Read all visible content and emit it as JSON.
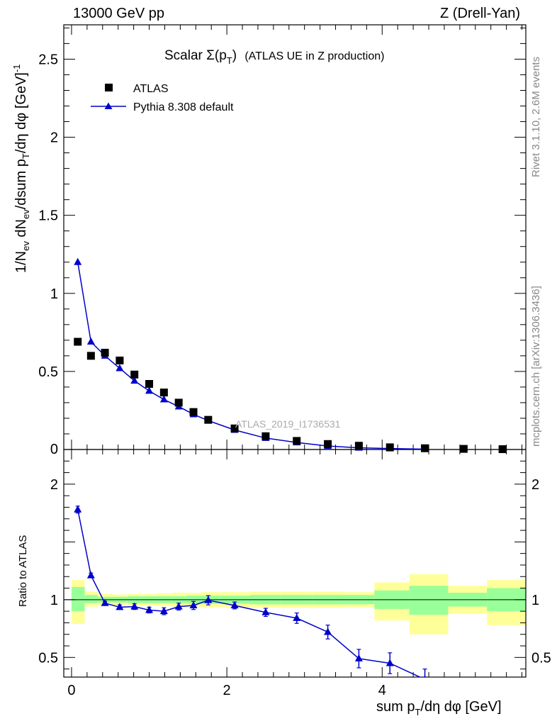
{
  "header": {
    "left": "13000 GeV pp",
    "right": "Z (Drell-Yan)"
  },
  "plot_title": {
    "main": "Scalar Σ(p",
    "sub": "T",
    "close": ")",
    "suffix": "(ATLAS UE in Z production)"
  },
  "legend": {
    "data_label": "ATLAS",
    "mc_label": "Pythia 8.308 default"
  },
  "watermark": "ATLAS_2019_I1736531",
  "side_text": {
    "rivet": "Rivet 3.1.10,  2.6M events",
    "mcplots": "mcplots.cern.ch [arXiv:1306.3436]"
  },
  "axes": {
    "ylabel_main": "1/N_ev dN_ev/dsum p_T/dη dφ [GeV]^-1",
    "ylabel_ratio": "Ratio to ATLAS",
    "xlabel": "sum p_T/dη dφ [GeV]"
  },
  "colors": {
    "data": "#000000",
    "mc": "#0000cc",
    "band_inner": "#99ff99",
    "band_outer": "#ffff99"
  },
  "chart_data": {
    "type": "scatter",
    "xlim": [
      -0.1,
      5.85
    ],
    "ylim_main": [
      0,
      2.72
    ],
    "ylim_ratio": [
      0.33,
      2.3
    ],
    "x_ticks": [
      0,
      2,
      4
    ],
    "y_ticks_main": [
      0.5,
      1,
      1.5,
      2,
      2.5
    ],
    "y_ticks_ratio": [
      0.5,
      1,
      2
    ],
    "data": [
      {
        "x": 0.08,
        "y": 0.69
      },
      {
        "x": 0.25,
        "y": 0.6
      },
      {
        "x": 0.43,
        "y": 0.62
      },
      {
        "x": 0.62,
        "y": 0.57
      },
      {
        "x": 0.81,
        "y": 0.48
      },
      {
        "x": 1.0,
        "y": 0.42
      },
      {
        "x": 1.19,
        "y": 0.365
      },
      {
        "x": 1.38,
        "y": 0.3
      },
      {
        "x": 1.57,
        "y": 0.24
      },
      {
        "x": 1.76,
        "y": 0.19
      },
      {
        "x": 2.1,
        "y": 0.135
      },
      {
        "x": 2.5,
        "y": 0.085
      },
      {
        "x": 2.9,
        "y": 0.055
      },
      {
        "x": 3.3,
        "y": 0.035
      },
      {
        "x": 3.7,
        "y": 0.024
      },
      {
        "x": 4.1,
        "y": 0.014
      },
      {
        "x": 4.55,
        "y": 0.008
      },
      {
        "x": 5.05,
        "y": 0.004
      },
      {
        "x": 5.55,
        "y": 0.002
      }
    ],
    "mc": [
      {
        "x": 0.08,
        "y": 1.2,
        "err": 0.02
      },
      {
        "x": 0.25,
        "y": 0.69,
        "err": 0.01
      },
      {
        "x": 0.43,
        "y": 0.6,
        "err": 0.01
      },
      {
        "x": 0.62,
        "y": 0.52,
        "err": 0.01
      },
      {
        "x": 0.81,
        "y": 0.44,
        "err": 0.01
      },
      {
        "x": 1.0,
        "y": 0.375,
        "err": 0.01
      },
      {
        "x": 1.19,
        "y": 0.32,
        "err": 0.01
      },
      {
        "x": 1.38,
        "y": 0.275,
        "err": 0.01
      },
      {
        "x": 1.57,
        "y": 0.225,
        "err": 0.01
      },
      {
        "x": 1.76,
        "y": 0.185,
        "err": 0.01
      },
      {
        "x": 2.1,
        "y": 0.125,
        "err": 0.005
      },
      {
        "x": 2.5,
        "y": 0.073,
        "err": 0.004
      },
      {
        "x": 2.9,
        "y": 0.045,
        "err": 0.003
      },
      {
        "x": 3.3,
        "y": 0.022,
        "err": 0.002
      },
      {
        "x": 3.7,
        "y": 0.011,
        "err": 0.002
      },
      {
        "x": 4.1,
        "y": 0.006,
        "err": 0.001
      },
      {
        "x": 4.55,
        "y": 0.002,
        "err": 0.001
      }
    ],
    "ratio": [
      {
        "x": 0.08,
        "y": 1.78,
        "err": 0.03
      },
      {
        "x": 0.25,
        "y": 1.21,
        "err": 0.02
      },
      {
        "x": 0.43,
        "y": 0.97,
        "err": 0.015
      },
      {
        "x": 0.62,
        "y": 0.935,
        "err": 0.02
      },
      {
        "x": 0.81,
        "y": 0.94,
        "err": 0.025
      },
      {
        "x": 1.0,
        "y": 0.91,
        "err": 0.025
      },
      {
        "x": 1.19,
        "y": 0.9,
        "err": 0.03
      },
      {
        "x": 1.38,
        "y": 0.94,
        "err": 0.03
      },
      {
        "x": 1.57,
        "y": 0.95,
        "err": 0.035
      },
      {
        "x": 1.76,
        "y": 0.995,
        "err": 0.04
      },
      {
        "x": 2.1,
        "y": 0.95,
        "err": 0.03
      },
      {
        "x": 2.5,
        "y": 0.89,
        "err": 0.035
      },
      {
        "x": 2.9,
        "y": 0.84,
        "err": 0.045
      },
      {
        "x": 3.3,
        "y": 0.72,
        "err": 0.06
      },
      {
        "x": 3.7,
        "y": 0.49,
        "err": 0.08
      },
      {
        "x": 4.1,
        "y": 0.45,
        "err": 0.09
      },
      {
        "x": 4.55,
        "y": 0.31,
        "err": 0.09
      }
    ],
    "bands": [
      {
        "x0": 0.0,
        "x1": 0.17,
        "in_lo": 0.9,
        "in_hi": 1.11,
        "out_lo": 0.79,
        "out_hi": 1.17
      },
      {
        "x0": 0.17,
        "x1": 0.34,
        "in_lo": 0.97,
        "in_hi": 1.04,
        "out_lo": 0.94,
        "out_hi": 1.07
      },
      {
        "x0": 0.34,
        "x1": 0.53,
        "in_lo": 0.975,
        "in_hi": 1.025,
        "out_lo": 0.95,
        "out_hi": 1.05
      },
      {
        "x0": 0.53,
        "x1": 0.72,
        "in_lo": 0.975,
        "in_hi": 1.025,
        "out_lo": 0.955,
        "out_hi": 1.045
      },
      {
        "x0": 0.72,
        "x1": 0.91,
        "in_lo": 0.97,
        "in_hi": 1.03,
        "out_lo": 0.95,
        "out_hi": 1.05
      },
      {
        "x0": 0.91,
        "x1": 1.1,
        "in_lo": 0.97,
        "in_hi": 1.03,
        "out_lo": 0.95,
        "out_hi": 1.05
      },
      {
        "x0": 1.1,
        "x1": 1.29,
        "in_lo": 0.97,
        "in_hi": 1.03,
        "out_lo": 0.945,
        "out_hi": 1.055
      },
      {
        "x0": 1.29,
        "x1": 1.48,
        "in_lo": 0.97,
        "in_hi": 1.03,
        "out_lo": 0.94,
        "out_hi": 1.06
      },
      {
        "x0": 1.48,
        "x1": 1.67,
        "in_lo": 0.965,
        "in_hi": 1.035,
        "out_lo": 0.94,
        "out_hi": 1.06
      },
      {
        "x0": 1.67,
        "x1": 1.9,
        "in_lo": 0.965,
        "in_hi": 1.035,
        "out_lo": 0.935,
        "out_hi": 1.065
      },
      {
        "x0": 1.9,
        "x1": 2.3,
        "in_lo": 0.965,
        "in_hi": 1.035,
        "out_lo": 0.935,
        "out_hi": 1.065
      },
      {
        "x0": 2.3,
        "x1": 2.7,
        "in_lo": 0.96,
        "in_hi": 1.04,
        "out_lo": 0.93,
        "out_hi": 1.07
      },
      {
        "x0": 2.7,
        "x1": 3.1,
        "in_lo": 0.96,
        "in_hi": 1.04,
        "out_lo": 0.93,
        "out_hi": 1.07
      },
      {
        "x0": 3.1,
        "x1": 3.5,
        "in_lo": 0.96,
        "in_hi": 1.04,
        "out_lo": 0.93,
        "out_hi": 1.07
      },
      {
        "x0": 3.5,
        "x1": 3.9,
        "in_lo": 0.96,
        "in_hi": 1.04,
        "out_lo": 0.935,
        "out_hi": 1.065
      },
      {
        "x0": 3.9,
        "x1": 4.35,
        "in_lo": 0.92,
        "in_hi": 1.08,
        "out_lo": 0.82,
        "out_hi": 1.15
      },
      {
        "x0": 4.35,
        "x1": 4.85,
        "in_lo": 0.87,
        "in_hi": 1.12,
        "out_lo": 0.7,
        "out_hi": 1.22
      },
      {
        "x0": 4.85,
        "x1": 5.35,
        "in_lo": 0.94,
        "in_hi": 1.06,
        "out_lo": 0.88,
        "out_hi": 1.12
      },
      {
        "x0": 5.35,
        "x1": 5.85,
        "in_lo": 0.9,
        "in_hi": 1.1,
        "out_lo": 0.78,
        "out_hi": 1.17
      }
    ]
  }
}
